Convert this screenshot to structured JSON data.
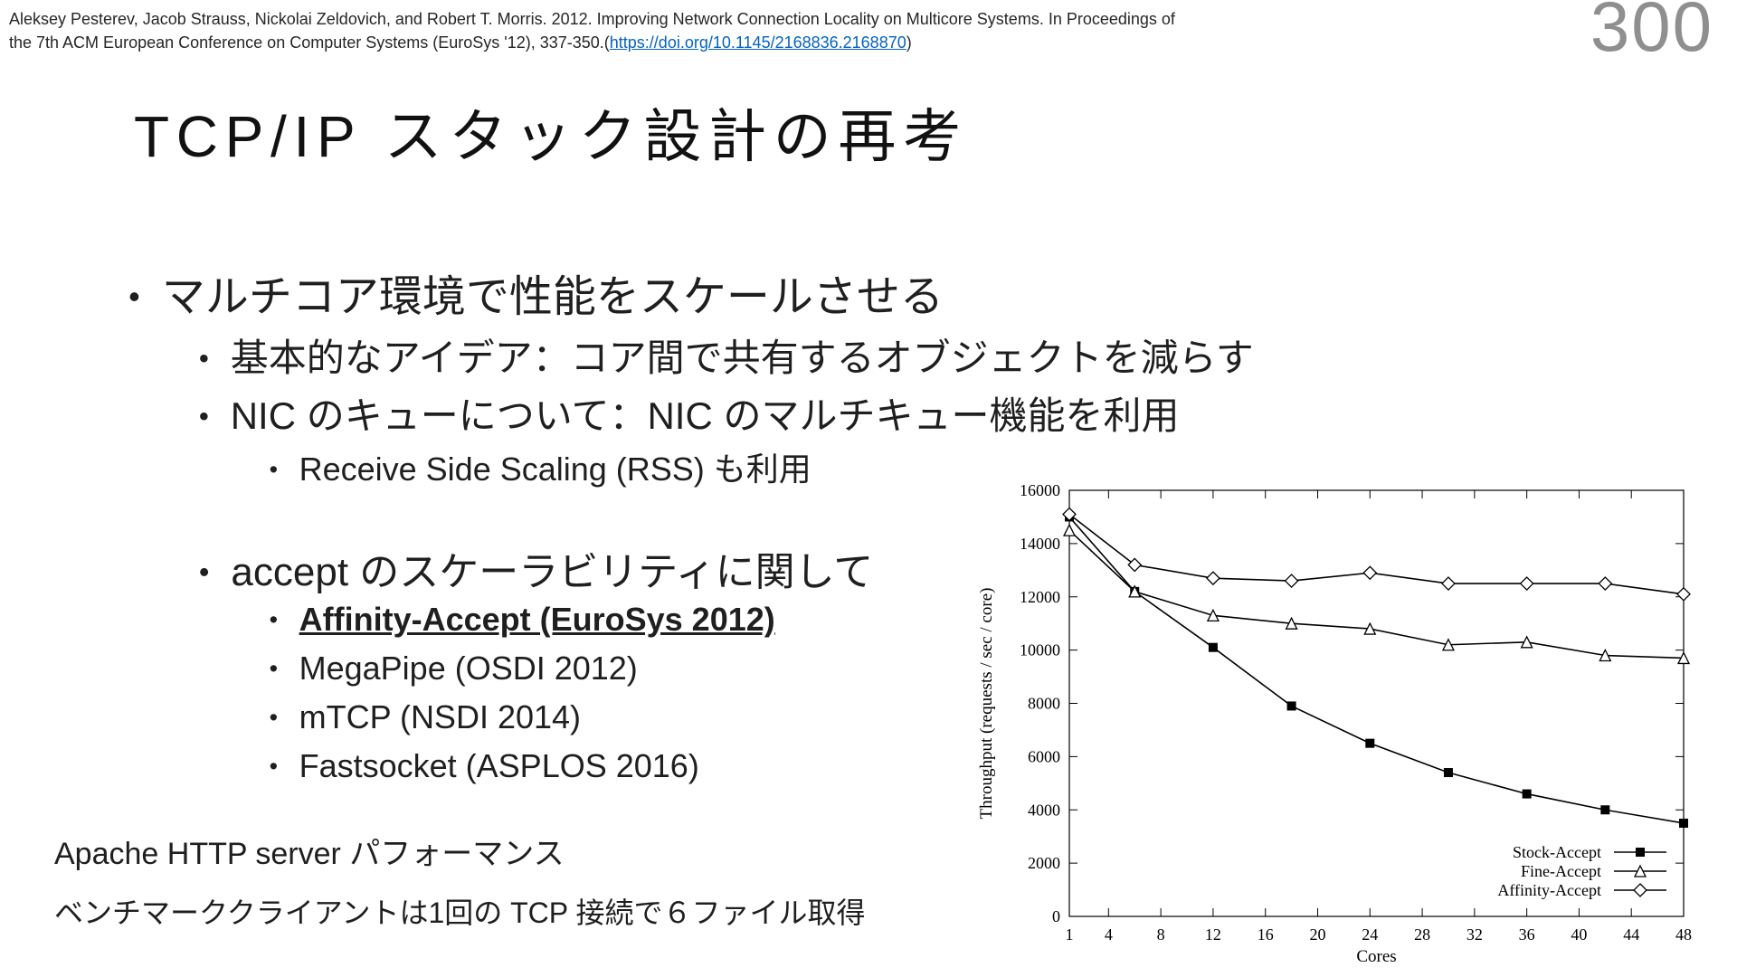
{
  "page": {
    "number": "300"
  },
  "colors": {
    "link": "#0563c1",
    "page_number_gray": "#8f8f8f",
    "text": "#1f1f1f"
  },
  "citation": {
    "line1": "Aleksey Pesterev, Jacob Strauss, Nickolai Zeldovich, and Robert T. Morris. 2012. Improving Network Connection Locality on Multicore Systems. In Proceedings of",
    "line2_before_link": "the 7th ACM European Conference on Computer Systems (EuroSys '12), 337-350.(",
    "link": "https://doi.org/10.1145/2168836.2168870",
    "line2_after_link": ")"
  },
  "title": "TCP/IP スタック設計の再考",
  "bullets": {
    "level1": "マルチコア環境で性能をスケールさせる",
    "level2_idea": "基本的なアイデア：コア間で共有するオブジェクトを減らす",
    "level2_nic": "NIC のキューについて：NIC のマルチキュー機能を利用",
    "level3_rss": "Receive Side Scaling (RSS) も利用",
    "level2_accept": "accept のスケーラビリティに関して",
    "papers": [
      {
        "label": "Affinity-Accept (EuroSys 2012)",
        "emphasis": true
      },
      {
        "label": "MegaPipe (OSDI 2012)",
        "emphasis": false
      },
      {
        "label": "mTCP (NSDI 2014)",
        "emphasis": false
      },
      {
        "label": "Fastsocket (ASPLOS 2016)",
        "emphasis": false
      }
    ],
    "marker": "•"
  },
  "footer": {
    "line1": "Apache HTTP server パフォーマンス",
    "line2": "ベンチマーククライアントは1回の TCP 接続で６ファイル取得"
  },
  "chart_data": {
    "type": "line",
    "title": "",
    "xlabel": "Cores",
    "ylabel": "Throughput (requests / sec / core)",
    "xlim": [
      1,
      48
    ],
    "ylim": [
      0,
      16000
    ],
    "xticks": [
      1,
      4,
      8,
      12,
      16,
      20,
      24,
      28,
      32,
      36,
      40,
      44,
      48
    ],
    "yticks": [
      0,
      2000,
      4000,
      6000,
      8000,
      10000,
      12000,
      14000,
      16000
    ],
    "grid": false,
    "legend_position": "bottom-right",
    "x": [
      1,
      6,
      12,
      18,
      24,
      30,
      36,
      42,
      48
    ],
    "series": [
      {
        "name": "Stock-Accept",
        "marker": "square-filled",
        "values": [
          15000,
          12200,
          10100,
          7900,
          6500,
          5400,
          4600,
          4000,
          3500
        ]
      },
      {
        "name": "Fine-Accept",
        "marker": "triangle-open",
        "values": [
          14500,
          12200,
          11300,
          11000,
          10800,
          10200,
          10300,
          9800,
          9700
        ]
      },
      {
        "name": "Affinity-Accept",
        "marker": "diamond-open",
        "values": [
          15100,
          13200,
          12700,
          12600,
          12900,
          12500,
          12500,
          12500,
          12100
        ]
      }
    ]
  }
}
